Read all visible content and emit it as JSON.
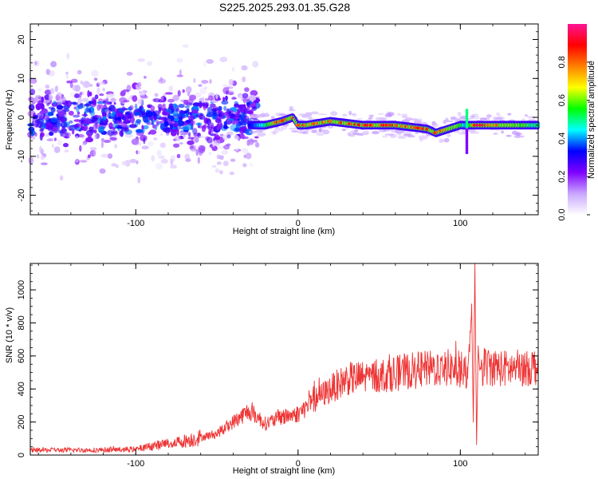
{
  "title": "S225.2025.293.01.35.G28",
  "chart_data": [
    {
      "type": "heatmap",
      "xlabel": "Height of straight line (km)",
      "ylabel": "Frequency (Hz)",
      "xlim": [
        -165,
        148
      ],
      "ylim": [
        -25,
        24
      ],
      "xticks": [
        -100,
        0,
        100
      ],
      "yticks": [
        20,
        10,
        0,
        -10,
        -20
      ],
      "colorbar": {
        "label": "Normalized spectral amplitude",
        "range": [
          0,
          1
        ],
        "ticks": [
          "0.0",
          "0.2",
          "0.4",
          "0.6",
          "0.8"
        ],
        "colors": [
          "#ffffff",
          "#c9a6ff",
          "#7f00ff",
          "#0000ff",
          "#00ffff",
          "#00ff00",
          "#ffff00",
          "#ff8000",
          "#ff0000",
          "#ff1493"
        ]
      },
      "ridge": {
        "x": [
          -30,
          -20,
          -10,
          -3,
          0,
          5,
          20,
          40,
          60,
          80,
          85,
          100,
          104,
          110,
          148
        ],
        "frequency_hz": [
          -2,
          -2,
          -1,
          0,
          -2,
          -2,
          -1,
          -2,
          -2,
          -3,
          -4,
          -2,
          -2,
          -2,
          -2
        ],
        "peak_amplitude": [
          0.3,
          0.55,
          0.9,
          0.95,
          0.85,
          0.8,
          0.85,
          0.9,
          0.9,
          0.9,
          0.85,
          0.6,
          0.4,
          0.95,
          0.5
        ]
      }
    },
    {
      "type": "line",
      "xlabel": "Height of straight line (km)",
      "ylabel": "SNR (10 * v/v)",
      "xlim": [
        -165,
        148
      ],
      "ylim": [
        0,
        1160
      ],
      "xticks": [
        -100,
        0,
        100
      ],
      "yticks": [
        0,
        200,
        400,
        600,
        800,
        1000
      ],
      "series": [
        {
          "name": "SNR",
          "color": "#ee3333",
          "x": [
            -165,
            -130,
            -100,
            -90,
            -70,
            -50,
            -40,
            -30,
            -20,
            -10,
            0,
            10,
            20,
            30,
            50,
            70,
            90,
            100,
            105,
            107,
            108,
            109,
            110,
            111,
            112,
            115,
            130,
            148
          ],
          "values": [
            30,
            30,
            35,
            55,
            85,
            130,
            200,
            270,
            190,
            230,
            250,
            330,
            400,
            460,
            480,
            510,
            530,
            520,
            480,
            900,
            200,
            1150,
            60,
            650,
            520,
            540,
            520,
            540
          ]
        }
      ]
    }
  ]
}
